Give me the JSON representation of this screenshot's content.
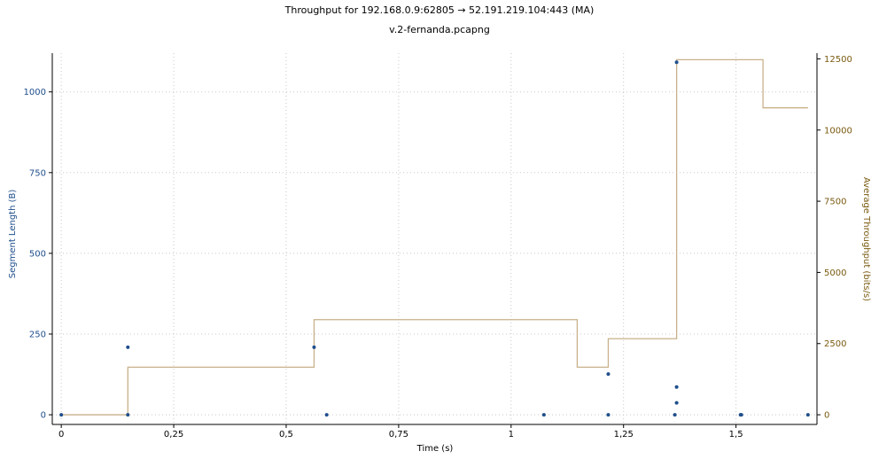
{
  "header": {
    "title": "Throughput for 192.168.0.9:62805 → 52.191.219.104:443 (MA)",
    "subtitle": "v.2-fernanda.pcapng"
  },
  "colors": {
    "segments": "#1f4e8c",
    "throughput": "#c8b18a",
    "left_axis_text": "#1f4e8c",
    "right_axis_text": "#7a5a10",
    "grid": "#c8c8c8"
  },
  "chart_data": {
    "type": "scatter",
    "title": "Throughput for 192.168.0.9:62805 → 52.191.219.104:443 (MA)",
    "subtitle": "v.2-fernanda.pcapng",
    "xlabel": "Time (s)",
    "ylabel": "Segment Length (B)",
    "y2label": "Average Throughput (bits/s)",
    "xlim": [
      -0.02,
      1.68
    ],
    "ylim": [
      -30,
      1120
    ],
    "y2lim": [
      -340,
      12700
    ],
    "xticks": [
      0,
      0.25,
      0.5,
      0.75,
      1,
      1.25,
      1.5
    ],
    "xtick_labels": [
      "0",
      "0,25",
      "0,5",
      "0,75",
      "1",
      "1,25",
      "1,5"
    ],
    "yticks": [
      0,
      250,
      500,
      750,
      1000
    ],
    "yticks_right": [
      0,
      2500,
      5000,
      7500,
      10000,
      12500
    ],
    "grid": true,
    "series": [
      {
        "name": "Segment Length",
        "type": "scatter",
        "axis": "left",
        "points": [
          [
            0.0,
            0
          ],
          [
            0.148,
            0
          ],
          [
            0.148,
            209
          ],
          [
            0.562,
            209
          ],
          [
            0.59,
            0
          ],
          [
            1.073,
            0
          ],
          [
            1.216,
            0
          ],
          [
            1.216,
            126
          ],
          [
            1.364,
            0
          ],
          [
            1.368,
            37
          ],
          [
            1.368,
            86
          ],
          [
            1.368,
            1092
          ],
          [
            1.51,
            0
          ],
          [
            1.512,
            0
          ],
          [
            1.66,
            0
          ]
        ]
      },
      {
        "name": "Average Throughput",
        "type": "line",
        "step": true,
        "axis": "right",
        "points": [
          [
            0.0,
            0
          ],
          [
            0.148,
            0
          ],
          [
            0.148,
            1670
          ],
          [
            0.562,
            1670
          ],
          [
            0.562,
            3340
          ],
          [
            1.147,
            3340
          ],
          [
            1.147,
            1670
          ],
          [
            1.216,
            1670
          ],
          [
            1.216,
            2670
          ],
          [
            1.368,
            2670
          ],
          [
            1.368,
            12470
          ],
          [
            1.56,
            12470
          ],
          [
            1.56,
            10780
          ],
          [
            1.66,
            10780
          ]
        ]
      }
    ]
  }
}
